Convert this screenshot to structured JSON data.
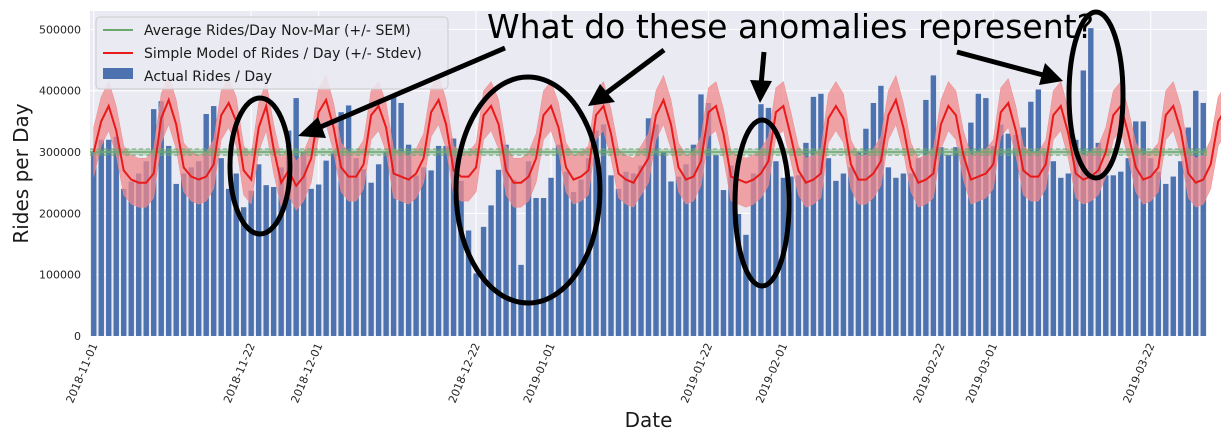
{
  "chart_data": {
    "type": "bar",
    "title": "What do these anomalies represent?",
    "xlabel": "Date",
    "ylabel": "Rides per Day",
    "ylim": [
      0,
      530000
    ],
    "y_ticks": [
      "0",
      "100000",
      "200000",
      "300000",
      "400000",
      "500000"
    ],
    "y_tick_values": [
      0,
      100000,
      200000,
      300000,
      400000,
      500000
    ],
    "x_ticks": [
      {
        "label": "2018-11-01",
        "day": 0
      },
      {
        "label": "2018-11-22",
        "day": 21
      },
      {
        "label": "2018-12-01",
        "day": 30
      },
      {
        "label": "2018-12-22",
        "day": 51
      },
      {
        "label": "2019-01-01",
        "day": 61
      },
      {
        "label": "2019-01-22",
        "day": 82
      },
      {
        "label": "2019-02-01",
        "day": 92
      },
      {
        "label": "2019-02-22",
        "day": 113
      },
      {
        "label": "2019-03-01",
        "day": 120
      },
      {
        "label": "2019-03-22",
        "day": 141
      }
    ],
    "grid": true,
    "legend_position": "top-left",
    "legend": [
      "Average Rides/Day Nov-Mar (+/- SEM)",
      "Simple Model of Rides / Day (+/- Stdev)",
      "Actual Rides / Day"
    ],
    "average": {
      "name": "Average Rides/Day Nov-Mar (+/- SEM)",
      "value": 300000,
      "sem": 5000
    },
    "model_stdev": 40000,
    "model": [
      300000,
      350000,
      375000,
      335000,
      270000,
      255000,
      250000,
      250000,
      265000,
      355000,
      385000,
      345000,
      275000,
      260000,
      255000,
      260000,
      280000,
      360000,
      380000,
      350000,
      270000,
      255000,
      340000,
      375000,
      305000,
      250000,
      270000,
      245000,
      260000,
      290000,
      365000,
      385000,
      340000,
      275000,
      260000,
      260000,
      280000,
      360000,
      375000,
      340000,
      265000,
      260000,
      255000,
      265000,
      290000,
      365000,
      385000,
      345000,
      270000,
      260000,
      260000,
      275000,
      360000,
      375000,
      345000,
      270000,
      250000,
      250000,
      260000,
      290000,
      360000,
      375000,
      340000,
      275000,
      255000,
      260000,
      270000,
      360000,
      375000,
      330000,
      265000,
      255000,
      250000,
      270000,
      290000,
      360000,
      385000,
      345000,
      275000,
      255000,
      260000,
      285000,
      365000,
      375000,
      330000,
      260000,
      255000,
      250000,
      255000,
      265000,
      285000,
      365000,
      375000,
      325000,
      270000,
      250000,
      255000,
      265000,
      355000,
      375000,
      355000,
      280000,
      255000,
      255000,
      265000,
      285000,
      360000,
      385000,
      340000,
      275000,
      250000,
      255000,
      265000,
      345000,
      375000,
      360000,
      295000,
      255000,
      260000,
      265000,
      280000,
      365000,
      380000,
      335000,
      270000,
      260000,
      260000,
      280000,
      360000,
      375000,
      330000,
      265000,
      255000,
      260000,
      270000,
      300000,
      360000,
      375000,
      330000,
      275000,
      255000,
      260000,
      275000,
      360000,
      375000,
      335000,
      265000,
      250000,
      255000,
      280000,
      350000,
      370000,
      375000,
      315000
    ],
    "series": [
      {
        "name": "Actual Rides / Day",
        "values": [
          300000,
          320000,
          320000,
          325000,
          240000,
          252000,
          265000,
          285000,
          370000,
          383000,
          310000,
          248000,
          265000,
          275000,
          285000,
          362000,
          375000,
          290000,
          240000,
          265000,
          210000,
          237000,
          280000,
          246000,
          243000,
          275000,
          335000,
          388000,
          300000,
          240000,
          247000,
          286000,
          298000,
          365000,
          376000,
          290000,
          272000,
          250000,
          280000,
          300000,
          392000,
          380000,
          312000,
          262000,
          275000,
          270000,
          310000,
          310000,
          322000,
          253000,
          172000,
          102000,
          178000,
          213000,
          271000,
          312000,
          255000,
          116000,
          285000,
          225000,
          225000,
          258000,
          312000,
          268000,
          235000,
          255000,
          290000,
          335000,
          345000,
          262000,
          240000,
          268000,
          265000,
          278000,
          355000,
          345000,
          300000,
          252000,
          260000,
          280000,
          312000,
          394000,
          380000,
          295000,
          238000,
          278000,
          199000,
          165000,
          265000,
          378000,
          372000,
          285000,
          258000,
          260000,
          262000,
          315000,
          390000,
          395000,
          290000,
          253000,
          265000,
          275000,
          300000,
          338000,
          380000,
          408000,
          275000,
          258000,
          265000,
          265000,
          290000,
          385000,
          425000,
          308000,
          295000,
          308000,
          300000,
          348000,
          395000,
          388000,
          310000,
          345000,
          330000,
          328000,
          340000,
          382000,
          402000,
          300000,
          285000,
          258000,
          265000,
          320000,
          433000,
          502000,
          315000,
          262000,
          262000,
          268000,
          290000,
          350000,
          350000,
          290000,
          268000,
          248000,
          260000,
          285000,
          340000,
          400000,
          380000
        ]
      }
    ],
    "colors": {
      "bar": "#4c72b0",
      "model": "#e81a1a",
      "model_band": "#f0898c",
      "average": "#6aa86c",
      "plot_bg": "#eaeaf2",
      "grid": "#ffffff"
    }
  }
}
